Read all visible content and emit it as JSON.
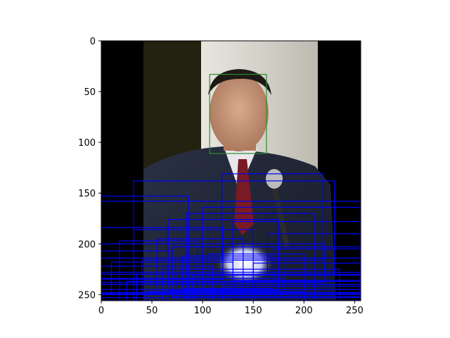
{
  "chart_data": {
    "type": "image",
    "title": "",
    "xlabel": "",
    "ylabel": "",
    "xlim": [
      0,
      256
    ],
    "ylim": [
      256,
      0
    ],
    "x_ticks": [
      0,
      50,
      100,
      150,
      200,
      250
    ],
    "y_ticks": [
      0,
      50,
      100,
      150,
      200,
      250
    ],
    "image_content": "photograph of a man in a dark suit speaking at a microphone",
    "colors": {
      "face_box": "#2e8b2e",
      "other_boxes": "#0000ff",
      "axes": "#000000"
    },
    "face_box": {
      "x0": 107,
      "y0": 33,
      "x1": 163,
      "y1": 111
    },
    "boxes": [
      {
        "x0": 119,
        "y0": 131,
        "x1": 219,
        "y1": 216
      },
      {
        "x0": 32,
        "y0": 138,
        "x1": 230,
        "y1": 230
      },
      {
        "x0": 0,
        "y0": 153,
        "x1": 86,
        "y1": 256
      },
      {
        "x0": 0,
        "y0": 158,
        "x1": 256,
        "y1": 250
      },
      {
        "x0": 100,
        "y0": 164,
        "x1": 256,
        "y1": 245
      },
      {
        "x0": 84,
        "y0": 170,
        "x1": 210,
        "y1": 256
      },
      {
        "x0": 66,
        "y0": 176,
        "x1": 175,
        "y1": 246
      },
      {
        "x0": 130,
        "y0": 178,
        "x1": 256,
        "y1": 236
      },
      {
        "x0": 0,
        "y0": 184,
        "x1": 120,
        "y1": 235
      },
      {
        "x0": 32,
        "y0": 186,
        "x1": 150,
        "y1": 256
      },
      {
        "x0": 164,
        "y0": 190,
        "x1": 256,
        "y1": 256
      },
      {
        "x0": 55,
        "y0": 195,
        "x1": 140,
        "y1": 248
      },
      {
        "x0": 18,
        "y0": 197,
        "x1": 95,
        "y1": 256
      },
      {
        "x0": 0,
        "y0": 200,
        "x1": 220,
        "y1": 238
      },
      {
        "x0": 70,
        "y0": 203,
        "x1": 256,
        "y1": 252
      },
      {
        "x0": 0,
        "y0": 207,
        "x1": 70,
        "y1": 240
      },
      {
        "x0": 105,
        "y0": 210,
        "x1": 200,
        "y1": 256
      },
      {
        "x0": 0,
        "y0": 214,
        "x1": 256,
        "y1": 230
      },
      {
        "x0": 40,
        "y0": 216,
        "x1": 180,
        "y1": 250
      },
      {
        "x0": 150,
        "y0": 219,
        "x1": 256,
        "y1": 248
      },
      {
        "x0": 0,
        "y0": 222,
        "x1": 110,
        "y1": 256
      },
      {
        "x0": 60,
        "y0": 225,
        "x1": 235,
        "y1": 256
      },
      {
        "x0": 0,
        "y0": 228,
        "x1": 256,
        "y1": 240
      },
      {
        "x0": 90,
        "y0": 231,
        "x1": 256,
        "y1": 256
      },
      {
        "x0": 0,
        "y0": 234,
        "x1": 180,
        "y1": 250
      },
      {
        "x0": 25,
        "y0": 237,
        "x1": 256,
        "y1": 256
      },
      {
        "x0": 0,
        "y0": 240,
        "x1": 256,
        "y1": 248
      },
      {
        "x0": 120,
        "y0": 242,
        "x1": 256,
        "y1": 256
      },
      {
        "x0": 0,
        "y0": 245,
        "x1": 256,
        "y1": 253
      },
      {
        "x0": 45,
        "y0": 247,
        "x1": 200,
        "y1": 256
      },
      {
        "x0": 0,
        "y0": 249,
        "x1": 256,
        "y1": 256
      },
      {
        "x0": 80,
        "y0": 212,
        "x1": 170,
        "y1": 244
      },
      {
        "x0": 10,
        "y0": 218,
        "x1": 130,
        "y1": 250
      },
      {
        "x0": 170,
        "y0": 205,
        "x1": 256,
        "y1": 240
      },
      {
        "x0": 35,
        "y0": 230,
        "x1": 75,
        "y1": 256
      },
      {
        "x0": 140,
        "y0": 236,
        "x1": 210,
        "y1": 256
      }
    ]
  }
}
